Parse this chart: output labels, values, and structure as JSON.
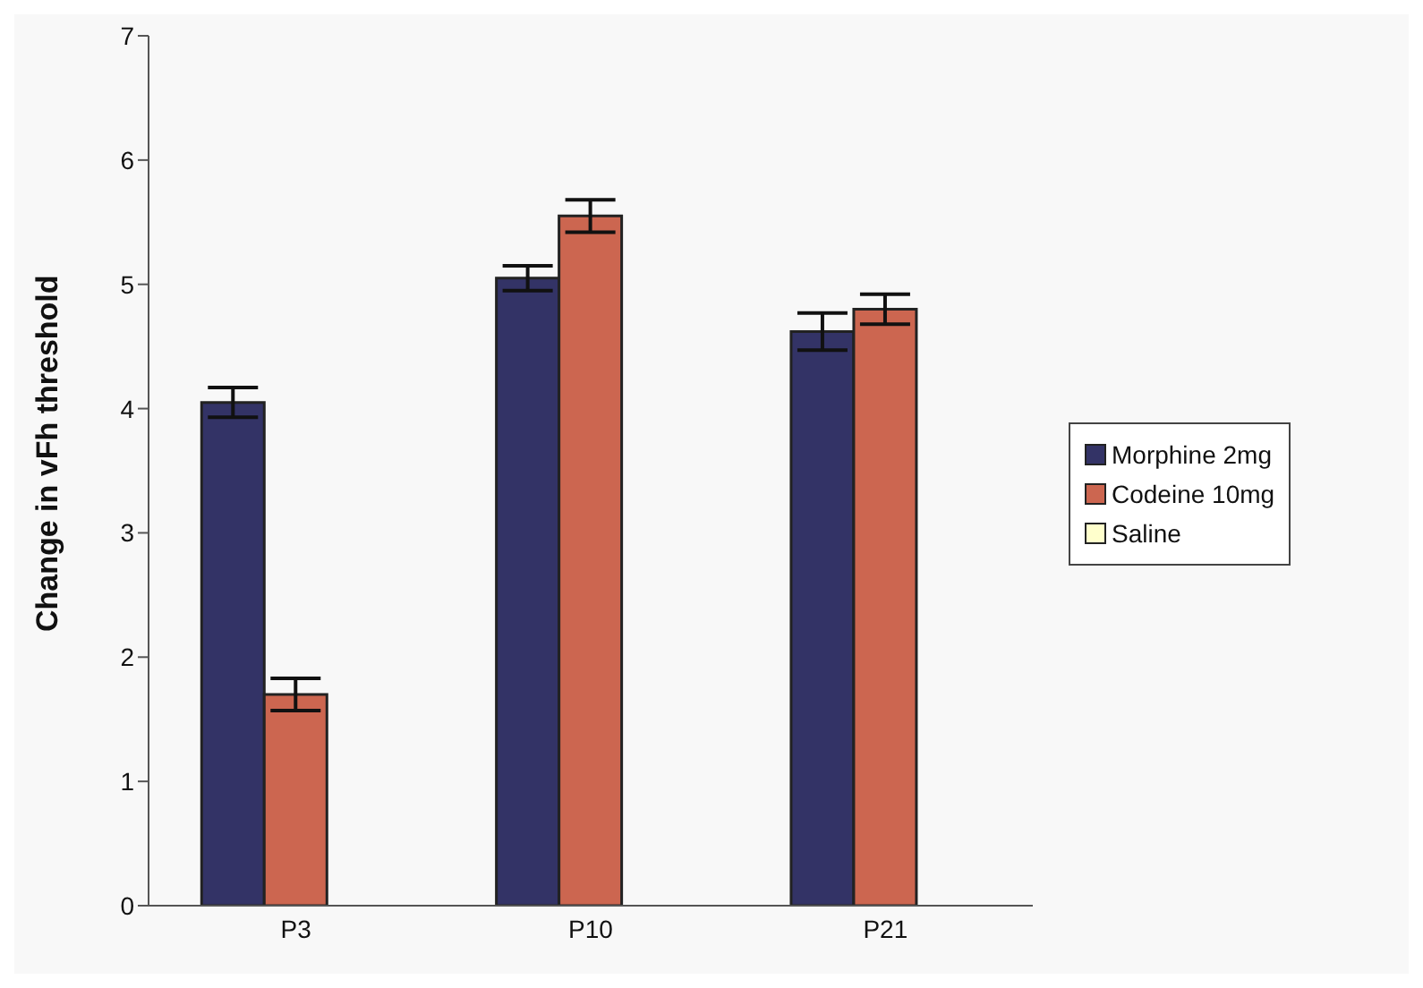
{
  "chart_data": {
    "type": "bar",
    "ylabel": "Change in vFh threshold",
    "categories": [
      "P3",
      "P10",
      "P21"
    ],
    "series": [
      {
        "name": "Morphine 2mg",
        "color": "#333366",
        "values": [
          4.05,
          5.05,
          4.62
        ],
        "errors": [
          0.12,
          0.1,
          0.15
        ]
      },
      {
        "name": "Codeine 10mg",
        "color": "#cc6650",
        "values": [
          1.7,
          5.55,
          4.8
        ],
        "errors": [
          0.13,
          0.13,
          0.12
        ]
      },
      {
        "name": "Saline",
        "color": "#ffffcc",
        "values": [
          0,
          0,
          0
        ]
      }
    ],
    "ylim": [
      0,
      7
    ],
    "yticks": [
      0,
      1,
      2,
      3,
      4,
      5,
      6,
      7
    ],
    "legend": "right"
  }
}
